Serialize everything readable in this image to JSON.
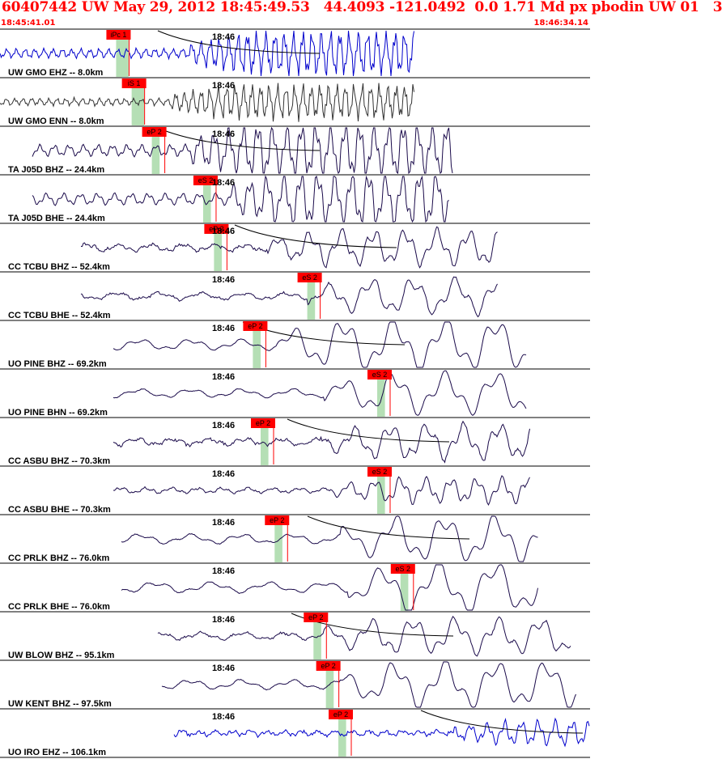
{
  "header": {
    "title": "60407442 UW May 29, 2012 18:45:49.53   44.4093 -121.0492  0.0 1.71 Md px pbodin UW 01   3",
    "start_time": "18:45:41.01",
    "end_time": "18:46:34.14"
  },
  "colors": {
    "title": "#ff0000",
    "pick_box": "#ff0000",
    "pick_band": "#b5dfb5",
    "trace_blue": "#0000cc",
    "trace_gray": "#333333",
    "trace_dark": "#1a0a4a",
    "coda": "#000000"
  },
  "chart_data": {
    "type": "seismogram",
    "time_tick_label": "18:46",
    "traces": [
      {
        "label": "UW GMO EHZ -- 8.0km",
        "color": "trace_blue",
        "picks": [
          {
            "label": "iPc 1",
            "band_start_s": 0.7,
            "band_end_s": 1.5
          }
        ]
      },
      {
        "label": "UW GMO ENN -- 8.0km",
        "color": "trace_gray",
        "picks": [
          {
            "label": "iS 1",
            "band_start_s": 1.7,
            "band_end_s": 2.5
          }
        ]
      },
      {
        "label": "TA J05D BHZ -- 24.4km",
        "color": "trace_dark",
        "picks": [
          {
            "label": "eP 2",
            "band_start_s": 3.0,
            "band_end_s": 3.5
          }
        ]
      },
      {
        "label": "TA J05D BHE -- 24.4km",
        "color": "trace_dark",
        "picks": [
          {
            "label": "eS 2",
            "band_start_s": 6.3,
            "band_end_s": 6.8
          }
        ]
      },
      {
        "label": "CC TCBU BHZ -- 52.4km",
        "color": "trace_dark",
        "picks": [
          {
            "label": "eP 2",
            "band_start_s": 7.0,
            "band_end_s": 7.5
          }
        ]
      },
      {
        "label": "CC TCBU BHE -- 52.4km",
        "color": "trace_dark",
        "picks": [
          {
            "label": "eS 2",
            "band_start_s": 13.0,
            "band_end_s": 13.5
          }
        ]
      },
      {
        "label": "UO PINE BHZ -- 69.2km",
        "color": "trace_dark",
        "picks": [
          {
            "label": "eP 2",
            "band_start_s": 9.5,
            "band_end_s": 10.0
          }
        ]
      },
      {
        "label": "UO PINE BHN -- 69.2km",
        "color": "trace_dark",
        "picks": [
          {
            "label": "eS 2",
            "band_start_s": 17.5,
            "band_end_s": 18.0
          }
        ]
      },
      {
        "label": "CC ASBU BHZ -- 70.3km",
        "color": "trace_dark",
        "picks": [
          {
            "label": "eP 2",
            "band_start_s": 10.0,
            "band_end_s": 10.5
          }
        ]
      },
      {
        "label": "CC ASBU BHE -- 70.3km",
        "color": "trace_dark",
        "picks": [
          {
            "label": "eS 2",
            "band_start_s": 17.5,
            "band_end_s": 18.0
          }
        ]
      },
      {
        "label": "CC PRLK BHZ -- 76.0km",
        "color": "trace_dark",
        "picks": [
          {
            "label": "eP 2",
            "band_start_s": 10.9,
            "band_end_s": 11.4
          }
        ]
      },
      {
        "label": "CC PRLK BHE -- 76.0km",
        "color": "trace_dark",
        "picks": [
          {
            "label": "eS 2",
            "band_start_s": 19.0,
            "band_end_s": 19.5
          }
        ]
      },
      {
        "label": "UW BLOW BHZ -- 95.1km",
        "color": "trace_dark",
        "picks": [
          {
            "label": "eP 2",
            "band_start_s": 13.4,
            "band_end_s": 13.9
          }
        ]
      },
      {
        "label": "UW KENT BHZ -- 97.5km",
        "color": "trace_dark",
        "picks": [
          {
            "label": "eP 2",
            "band_start_s": 14.2,
            "band_end_s": 14.7
          }
        ]
      },
      {
        "label": "UO IRO EHZ -- 106.1km",
        "color": "trace_blue",
        "picks": [
          {
            "label": "eP 2",
            "band_start_s": 15.0,
            "band_end_s": 15.5
          }
        ]
      }
    ]
  }
}
